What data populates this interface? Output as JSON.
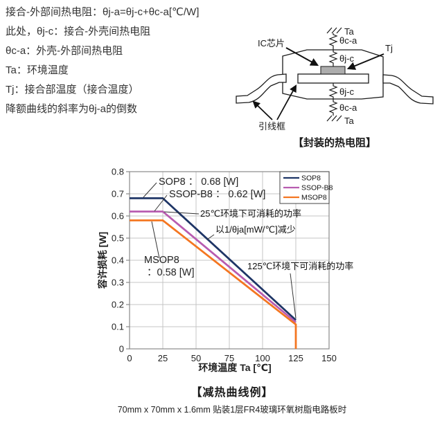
{
  "text_block": {
    "lines": [
      "接合-外部间热电阻：θj-a=θj-c+θc-a[℃/W]",
      "此处，θj-c：接合-外壳间热电阻",
      "θc-a：外壳-外部间热电阻",
      "Ta：环境温度",
      "Tj：接合部温度（接合温度）",
      "降额曲线的斜率为θj-a的倒数"
    ]
  },
  "diagram": {
    "caption": "【封装的热电阻】",
    "labels": {
      "ta_top": "Ta",
      "theta_ca_top": "θc-a",
      "theta_jc_top": "θj-c",
      "ic_chip": "IC芯片",
      "tj": "Tj",
      "theta_jc_bottom": "θj-c",
      "theta_ca_bottom": "θc-a",
      "ta_bottom": "Ta",
      "lead_frame": "引线框"
    }
  },
  "chart_data": {
    "type": "line",
    "title": "【减热曲线例】",
    "subtitle": "70mm x 70mm  x 1.6mm 贴装1层FR4玻璃环氧树脂电路板时",
    "xlabel": "环境温度 Ta [℃]",
    "ylabel": "容许损耗 [W]",
    "xlim": [
      0,
      150
    ],
    "ylim": [
      0,
      0.8
    ],
    "grid": true,
    "legend_position": "top-right",
    "xticks": [
      "0",
      "25",
      "50",
      "75",
      "100",
      "125",
      "150"
    ],
    "yticks": [
      "0",
      "0.1",
      "0.2",
      "0.3",
      "0.4",
      "0.5",
      "0.6",
      "0.7",
      "0.8"
    ],
    "series": [
      {
        "name": "SOP8",
        "color": "#1e3566",
        "points": [
          [
            0,
            0.68
          ],
          [
            25,
            0.68
          ],
          [
            125,
            0.13
          ]
        ],
        "callout": "SOP8 ： 0.68 [W]"
      },
      {
        "name": "SSOP-B8",
        "color": "#b85cb0",
        "points": [
          [
            0,
            0.62
          ],
          [
            25,
            0.62
          ],
          [
            125,
            0.12
          ]
        ],
        "callout": "SSOP-B8 ： 0.62 [W]"
      },
      {
        "name": "MSOP8",
        "color": "#f47621",
        "points": [
          [
            0,
            0.58
          ],
          [
            25,
            0.58
          ],
          [
            125,
            0.11
          ],
          [
            125,
            0
          ]
        ],
        "callout": "MSOP8",
        "callout2": "：0.58 [W]"
      }
    ],
    "annotations": [
      "25℃环境下可消耗的功率",
      "以1/θja[mW/℃]减少",
      "125℃环境下可消耗的功率"
    ]
  }
}
